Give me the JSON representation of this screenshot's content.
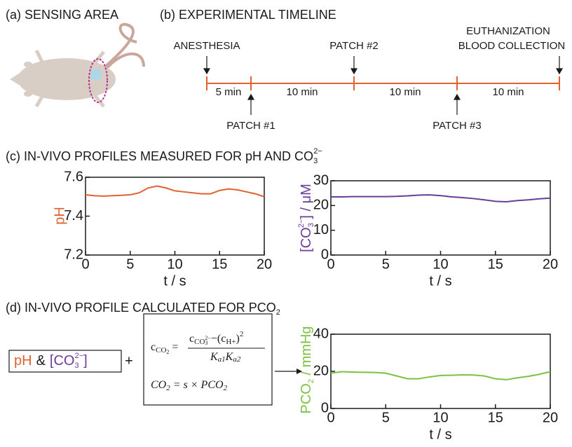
{
  "panels": {
    "a": "(a) SENSING AREA",
    "b": "(b) EXPERIMENTAL TIMELINE",
    "c": [
      "(c) IN-VIVO PROFILES MEASURED FOR pH AND CO",
      "3",
      "2−"
    ],
    "d": [
      "(d) IN-VIVO PROFILE CALCULATED FOR PCO",
      "2"
    ]
  },
  "timeline": {
    "above": [
      "ANESTHESIA",
      "PATCH #2"
    ],
    "end": [
      "EUTHANIZATION",
      "BLOOD COLLECTION"
    ],
    "below": [
      "PATCH #1",
      "PATCH #3"
    ],
    "intervals": [
      "5 min",
      "10 min",
      "10 min",
      "10 min"
    ]
  },
  "inputs": [
    "pH",
    "&",
    "[CO",
    "3",
    "2−",
    "]",
    "+"
  ],
  "formula": {
    "lhs": [
      "c",
      "CO",
      "2",
      "="
    ],
    "numerator": [
      "c",
      "CO",
      "3",
      "2−",
      "−(c",
      "H+",
      ")",
      "2"
    ],
    "denominator": [
      "K",
      "a1",
      "K",
      "a2"
    ],
    "line2": [
      "CO",
      "2",
      " = s × PCO",
      "2"
    ]
  },
  "chart_data": [
    {
      "type": "line",
      "ylabel": "pH",
      "xlabel": "t / s",
      "color": "#e0622f",
      "x": [
        0,
        1,
        2,
        3,
        4,
        5,
        6,
        7,
        8,
        9,
        10,
        11,
        12,
        13,
        14,
        15,
        16,
        17,
        18,
        19,
        20
      ],
      "values": [
        7.51,
        7.505,
        7.503,
        7.505,
        7.507,
        7.51,
        7.52,
        7.545,
        7.555,
        7.545,
        7.53,
        7.525,
        7.52,
        7.515,
        7.515,
        7.532,
        7.54,
        7.535,
        7.525,
        7.515,
        7.5
      ],
      "xlim": [
        0,
        20
      ],
      "xticks": [
        0,
        5,
        10,
        15,
        20
      ],
      "ylim": [
        7.2,
        7.6
      ],
      "yticks": [
        7.2,
        7.4,
        7.6
      ]
    },
    {
      "type": "line",
      "ylabel": [
        "[CO",
        "3",
        "2−",
        "] / μM"
      ],
      "xlabel": "t / s",
      "color": "#6a3d9a",
      "x": [
        0,
        1,
        2,
        3,
        4,
        5,
        6,
        7,
        8,
        9,
        10,
        11,
        12,
        13,
        14,
        15,
        16,
        17,
        18,
        19,
        20
      ],
      "values": [
        23.5,
        23.5,
        23.6,
        23.6,
        23.6,
        23.6,
        23.7,
        23.9,
        24.2,
        24.3,
        24.0,
        23.5,
        23.2,
        22.8,
        22.3,
        21.7,
        21.5,
        22.0,
        22.3,
        22.7,
        23.0
      ],
      "xlim": [
        0,
        20
      ],
      "xticks": [
        0,
        5,
        10,
        15,
        20
      ],
      "ylim": [
        0,
        30
      ],
      "yticks": [
        0,
        10,
        20,
        30
      ]
    },
    {
      "type": "line",
      "ylabel": [
        "PCO",
        "2",
        " / mmHg"
      ],
      "xlabel": "t / s",
      "color": "#7cc242",
      "x": [
        0,
        1,
        2,
        3,
        4,
        5,
        6,
        7,
        8,
        9,
        10,
        11,
        12,
        13,
        14,
        15,
        16,
        17,
        18,
        19,
        20
      ],
      "values": [
        19,
        19.8,
        19.6,
        19.5,
        19.4,
        19.0,
        17.5,
        16,
        16,
        17,
        17.8,
        17.9,
        18.1,
        18,
        17.5,
        16,
        15.5,
        16.5,
        17.3,
        18.4,
        19.8
      ],
      "xlim": [
        0,
        20
      ],
      "xticks": [
        0,
        5,
        10,
        15,
        20
      ],
      "ylim": [
        0,
        40
      ],
      "yticks": [
        0,
        20,
        40
      ]
    }
  ]
}
